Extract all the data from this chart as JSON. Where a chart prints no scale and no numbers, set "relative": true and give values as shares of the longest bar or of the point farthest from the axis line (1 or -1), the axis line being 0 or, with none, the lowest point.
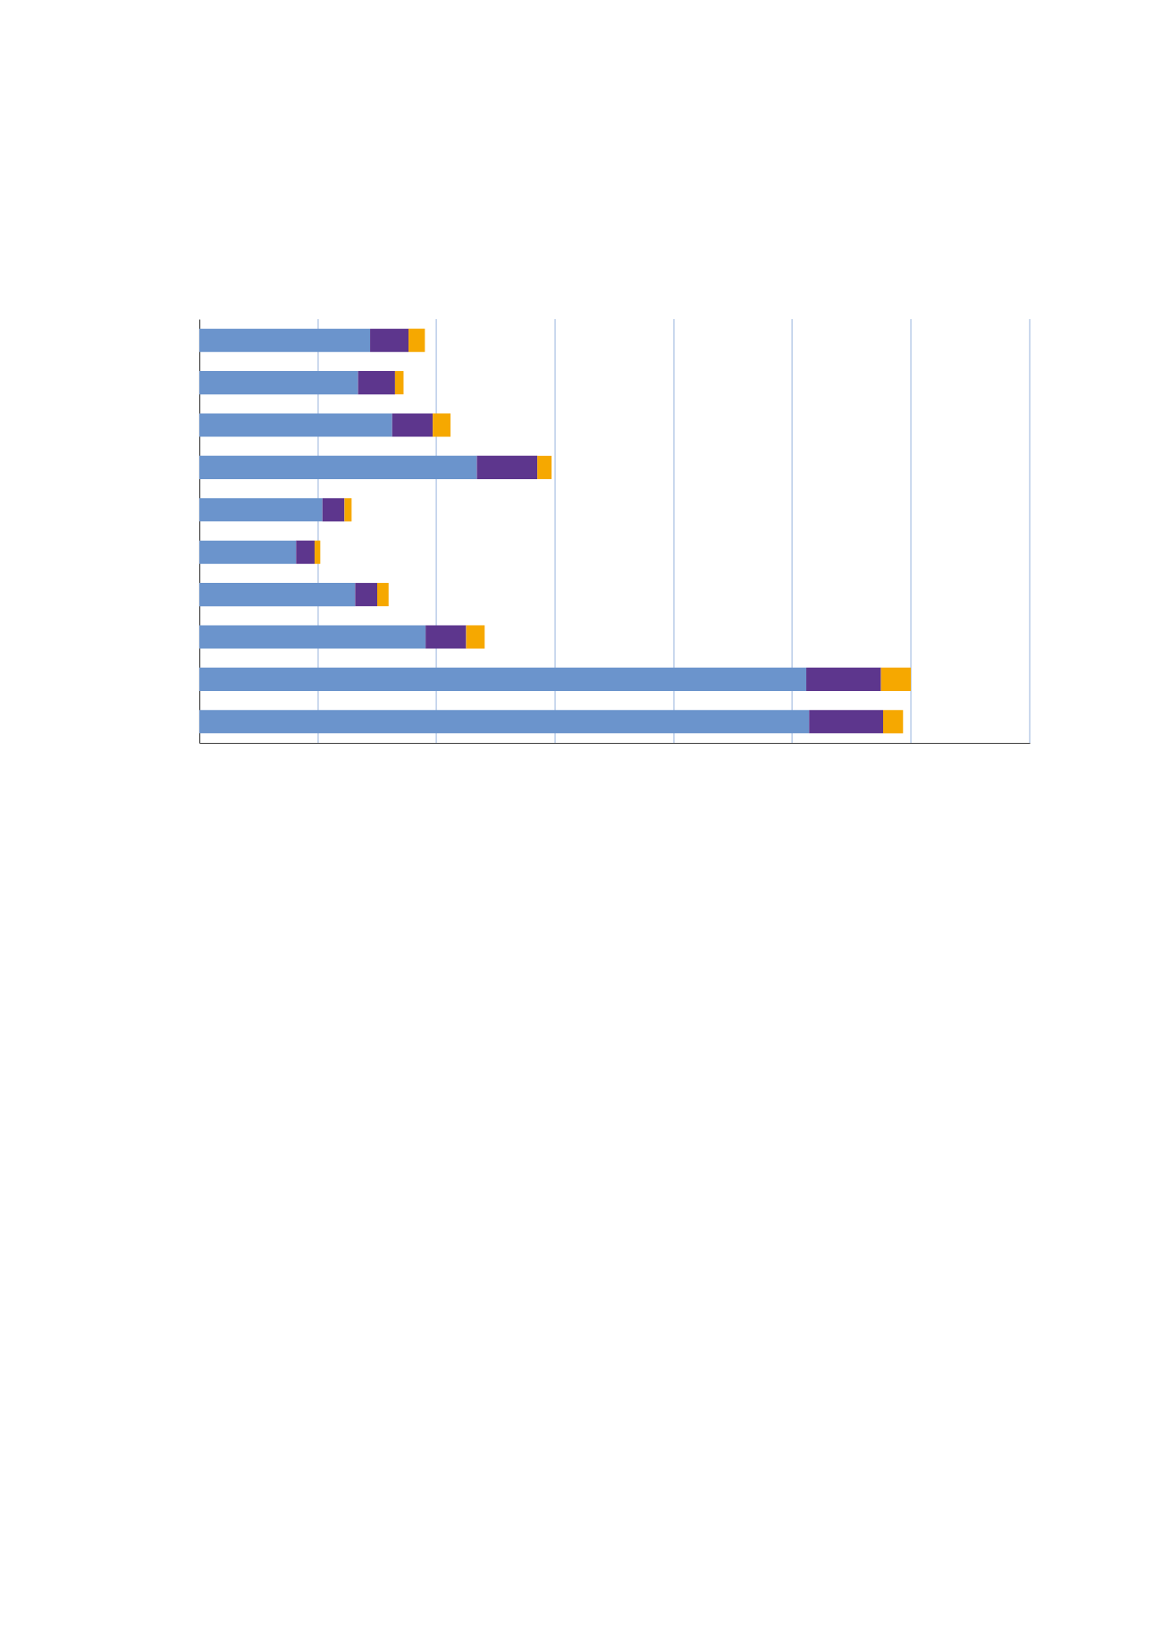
{
  "chart_data": {
    "type": "bar",
    "orientation": "horizontal",
    "stacked": true,
    "relative": true,
    "categories": [
      null,
      null,
      null,
      null,
      null,
      null,
      null,
      null,
      null,
      null
    ],
    "series": [
      {
        "color": "#6b94cc",
        "values": [
          0.24,
          0.223,
          0.271,
          0.39,
          0.173,
          0.136,
          0.219,
          0.318,
          0.853,
          0.857
        ]
      },
      {
        "color": "#5d368d",
        "values": [
          0.054,
          0.052,
          0.057,
          0.085,
          0.031,
          0.026,
          0.031,
          0.057,
          0.105,
          0.104
        ]
      },
      {
        "color": "#f6a800",
        "values": [
          0.023,
          0.012,
          0.025,
          0.02,
          0.01,
          0.008,
          0.016,
          0.026,
          0.042,
          0.028
        ]
      }
    ],
    "ref_lines": [
      {
        "axis": "x",
        "value": 0.167,
        "color": "#a9c0e3"
      },
      {
        "axis": "x",
        "value": 0.333,
        "color": "#a9c0e3"
      },
      {
        "axis": "x",
        "value": 0.5,
        "color": "#a9c0e3"
      },
      {
        "axis": "x",
        "value": 0.667,
        "color": "#a9c0e3"
      },
      {
        "axis": "x",
        "value": 0.833,
        "color": "#a9c0e3"
      },
      {
        "axis": "x",
        "value": 1.0,
        "color": "#a9c0e3"
      },
      {
        "axis": "x",
        "value": 1.167,
        "color": "#a9c0e3"
      }
    ],
    "tick_labels": false
  }
}
